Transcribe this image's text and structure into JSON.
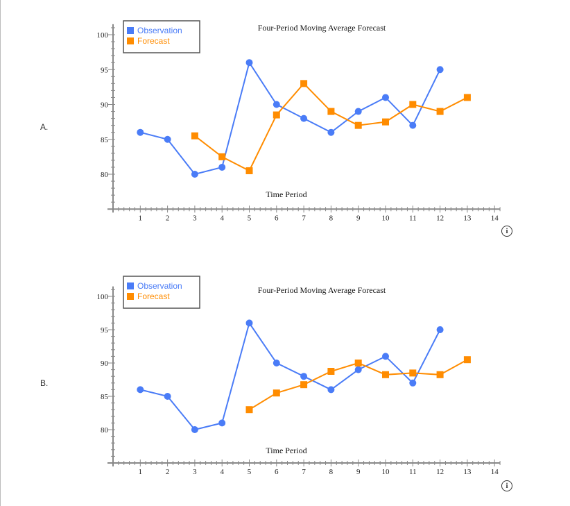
{
  "options": [
    {
      "label": "A."
    },
    {
      "label": "B."
    }
  ],
  "info_icon": "info-icon",
  "colors": {
    "observation": "#4a7cf7",
    "forecast": "#ff8c00",
    "axis": "#888888"
  },
  "chart_data": [
    {
      "type": "line",
      "title": "Four-Period Moving Average Forecast",
      "xlabel": "Time Period",
      "ylabel": "",
      "xlim": [
        0,
        14.2
      ],
      "ylim": [
        75,
        101.5
      ],
      "xticks": [
        1,
        2,
        3,
        4,
        5,
        6,
        7,
        8,
        9,
        10,
        11,
        12,
        13,
        14
      ],
      "yticks": [
        80,
        85,
        90,
        95,
        100
      ],
      "grid": false,
      "legend": "top-left",
      "series": [
        {
          "name": "Observation",
          "marker": "circle",
          "x": [
            1,
            2,
            3,
            4,
            5,
            6,
            7,
            8,
            9,
            10,
            11,
            12
          ],
          "y": [
            86,
            85,
            80,
            81,
            96,
            90,
            88,
            86,
            89,
            91,
            87,
            95
          ]
        },
        {
          "name": "Forecast",
          "marker": "square",
          "x": [
            3,
            4,
            5,
            6,
            7,
            8,
            9,
            10,
            11,
            12,
            13
          ],
          "y": [
            85.5,
            82.5,
            80.5,
            88.5,
            93,
            89,
            87,
            87.5,
            90,
            89,
            91
          ]
        }
      ]
    },
    {
      "type": "line",
      "title": "Four-Period Moving Average Forecast",
      "xlabel": "Time Period",
      "ylabel": "",
      "xlim": [
        0,
        14.2
      ],
      "ylim": [
        75,
        101.5
      ],
      "xticks": [
        1,
        2,
        3,
        4,
        5,
        6,
        7,
        8,
        9,
        10,
        11,
        12,
        13,
        14
      ],
      "yticks": [
        80,
        85,
        90,
        95,
        100
      ],
      "grid": false,
      "legend": "top-left",
      "series": [
        {
          "name": "Observation",
          "marker": "circle",
          "x": [
            1,
            2,
            3,
            4,
            5,
            6,
            7,
            8,
            9,
            10,
            11,
            12
          ],
          "y": [
            86,
            85,
            80,
            81,
            96,
            90,
            88,
            86,
            89,
            91,
            87,
            95
          ]
        },
        {
          "name": "Forecast",
          "marker": "square",
          "x": [
            5,
            6,
            7,
            8,
            9,
            10,
            11,
            12,
            13
          ],
          "y": [
            83,
            85.5,
            86.75,
            88.75,
            90,
            88.25,
            88.5,
            88.25,
            90.5
          ]
        }
      ]
    }
  ]
}
